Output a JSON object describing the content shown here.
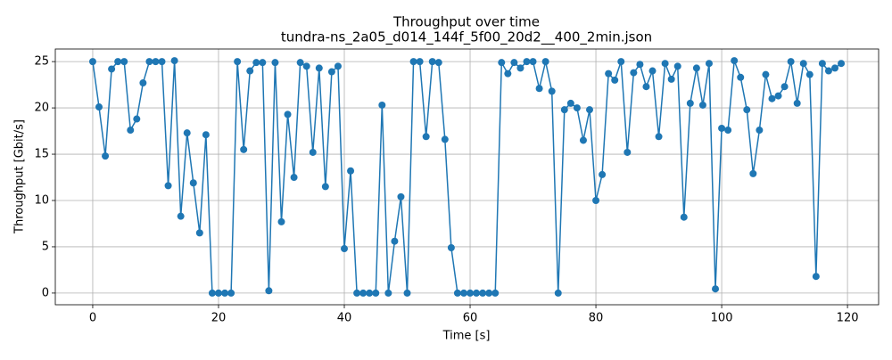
{
  "chart_data": {
    "type": "line",
    "title": "Throughput over time",
    "subtitle": "tundra-ns_2a05_d014_144f_5f00_20d2__400_2min.json",
    "x_label": "Time [s]",
    "y_label": "Throughput [Gbit/s]",
    "x": [
      0,
      1,
      2,
      3,
      4,
      5,
      6,
      7,
      8,
      9,
      10,
      11,
      12,
      13,
      14,
      15,
      16,
      17,
      18,
      19,
      20,
      21,
      22,
      23,
      24,
      25,
      26,
      27,
      28,
      29,
      30,
      31,
      32,
      33,
      34,
      35,
      36,
      37,
      38,
      39,
      40,
      41,
      42,
      43,
      44,
      45,
      46,
      47,
      48,
      49,
      50,
      51,
      52,
      53,
      54,
      55,
      56,
      57,
      58,
      59,
      60,
      61,
      62,
      63,
      64,
      65,
      66,
      67,
      68,
      69,
      70,
      71,
      72,
      73,
      74,
      75,
      76,
      77,
      78,
      79,
      80,
      81,
      82,
      83,
      84,
      85,
      86,
      87,
      88,
      89,
      90,
      91,
      92,
      93,
      94,
      95,
      96,
      97,
      98,
      99,
      100,
      101,
      102,
      103,
      104,
      105,
      106,
      107,
      108,
      109,
      110,
      111,
      112,
      113,
      114,
      115,
      116,
      117,
      118,
      119
    ],
    "values": [
      25.0,
      20.1,
      14.8,
      24.2,
      25.0,
      25.0,
      17.6,
      18.8,
      22.7,
      25.0,
      25.0,
      25.0,
      11.6,
      25.1,
      8.3,
      17.3,
      11.9,
      6.5,
      17.1,
      0,
      0,
      0,
      0,
      25.0,
      15.5,
      24.0,
      24.9,
      24.9,
      0.25,
      24.9,
      7.7,
      19.3,
      12.5,
      24.9,
      24.5,
      15.2,
      24.3,
      11.5,
      23.9,
      24.5,
      4.8,
      13.2,
      0,
      0,
      0,
      0,
      20.3,
      0,
      5.6,
      10.4,
      0,
      25.0,
      25.0,
      16.9,
      25.0,
      24.9,
      16.6,
      4.9,
      0,
      0,
      0,
      0,
      0,
      0,
      0,
      24.9,
      23.7,
      24.9,
      24.3,
      25.0,
      25.0,
      22.1,
      25.0,
      21.8,
      0,
      19.8,
      20.5,
      20.0,
      16.5,
      19.8,
      10.0,
      12.8,
      23.7,
      23.0,
      25.0,
      15.2,
      23.8,
      24.7,
      22.3,
      24.0,
      16.9,
      24.8,
      23.1,
      24.5,
      8.2,
      20.5,
      24.3,
      20.3,
      24.8,
      0.45,
      17.8,
      17.6,
      25.1,
      23.3,
      19.8,
      12.9,
      17.6,
      23.6,
      21.0,
      21.3,
      22.3,
      25.0,
      20.5,
      24.8,
      23.6,
      1.8,
      24.8,
      24.0,
      24.3,
      24.8
    ],
    "color": "#1f77b4",
    "xlim": [
      -5.95,
      124.95
    ],
    "xticks": [
      0,
      20,
      40,
      60,
      80,
      100,
      120
    ],
    "ylim": [
      -1.26,
      26.36
    ],
    "yticks": [
      0,
      5,
      10,
      15,
      20,
      25
    ],
    "grid": true
  }
}
